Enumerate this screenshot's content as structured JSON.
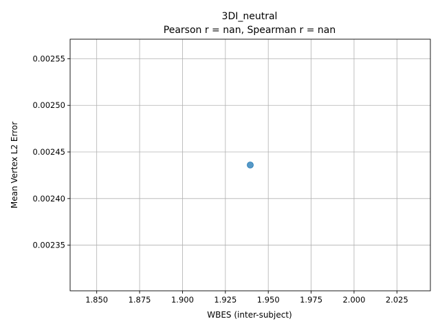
{
  "chart_data": {
    "type": "scatter",
    "title": "3DI_neutral",
    "subtitle": "Pearson r = nan, Spearman r = nan",
    "xlabel": "WBES (inter-subject)",
    "ylabel": "Mean Vertex L2 Error",
    "xlim": [
      1.8345,
      2.0445
    ],
    "ylim": [
      0.002301,
      0.002571
    ],
    "xticks": [
      1.85,
      1.875,
      1.9,
      1.925,
      1.95,
      1.975,
      2.0,
      2.025
    ],
    "xtick_labels": [
      "1.850",
      "1.875",
      "1.900",
      "1.925",
      "1.950",
      "1.975",
      "2.000",
      "2.025"
    ],
    "yticks": [
      0.00235,
      0.0024,
      0.00245,
      0.0025,
      0.00255
    ],
    "ytick_labels": [
      "0.00235",
      "0.00240",
      "0.00245",
      "0.00250",
      "0.00255"
    ],
    "grid": true,
    "points": [
      {
        "x": 1.9395,
        "y": 0.002436
      }
    ],
    "point_color": "#1f77b4",
    "grid_color": "#b0b0b0"
  }
}
